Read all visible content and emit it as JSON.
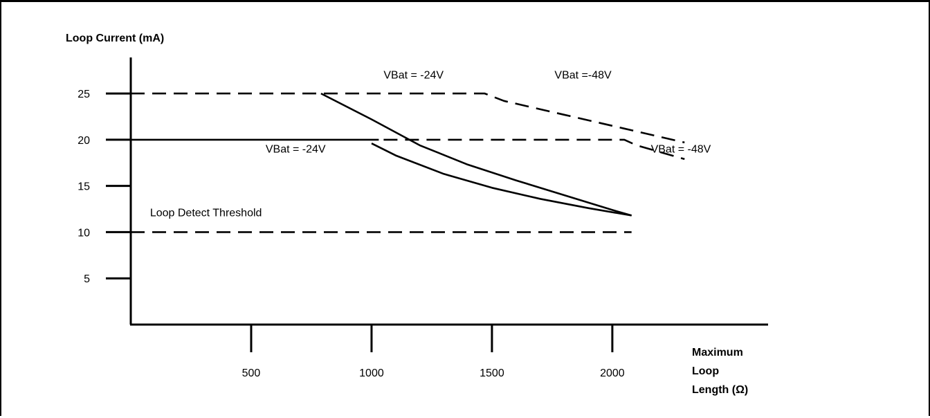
{
  "chart_data": {
    "type": "line",
    "ylabel": "Loop Current (mA)",
    "xlabel_lines": [
      "Maximum",
      "Loop",
      "Length (Ω)"
    ],
    "x_ticks": [
      500,
      1000,
      1500,
      2000
    ],
    "y_ticks": [
      5,
      10,
      15,
      20,
      25
    ],
    "xlim": [
      0,
      2690
    ],
    "ylim": [
      0,
      28
    ],
    "series": [
      {
        "style": "dashed",
        "points": [
          [
            0,
            25
          ],
          [
            1470,
            25
          ],
          [
            1550,
            24.2
          ],
          [
            1800,
            22.7
          ],
          [
            2050,
            21.2
          ],
          [
            2300,
            19.7
          ]
        ]
      },
      {
        "style": "dashed",
        "points": [
          [
            1050,
            20
          ],
          [
            2050,
            20
          ],
          [
            2100,
            19.4
          ],
          [
            2300,
            17.9
          ]
        ]
      },
      {
        "style": "solid",
        "points": [
          [
            0,
            20
          ],
          [
            1030,
            20
          ]
        ]
      },
      {
        "style": "solid",
        "points": [
          [
            790,
            25
          ],
          [
            1000,
            22.2
          ],
          [
            1200,
            19.4
          ],
          [
            1400,
            17.3
          ],
          [
            1600,
            15.6
          ],
          [
            1800,
            14.0
          ],
          [
            2000,
            12.4
          ],
          [
            2080,
            11.8
          ]
        ]
      },
      {
        "style": "solid",
        "points": [
          [
            1000,
            19.6
          ],
          [
            1100,
            18.3
          ],
          [
            1300,
            16.3
          ],
          [
            1500,
            14.8
          ],
          [
            1700,
            13.6
          ],
          [
            1900,
            12.6
          ],
          [
            2080,
            11.8
          ]
        ]
      },
      {
        "style": "dashed",
        "points": [
          [
            0,
            10
          ],
          [
            2080,
            10
          ]
        ]
      }
    ],
    "annotations": [
      {
        "text": "VBat = -24V",
        "x": 1050,
        "y": 26.6
      },
      {
        "text": "VBat =-48V",
        "x": 1760,
        "y": 26.6
      },
      {
        "text": "VBat = -24V",
        "x": 560,
        "y": 18.6
      },
      {
        "text": "VBat = -48V",
        "x": 2160,
        "y": 18.6
      },
      {
        "text": "Loop Detect Threshold",
        "x": 80,
        "y": 11.7
      }
    ]
  }
}
